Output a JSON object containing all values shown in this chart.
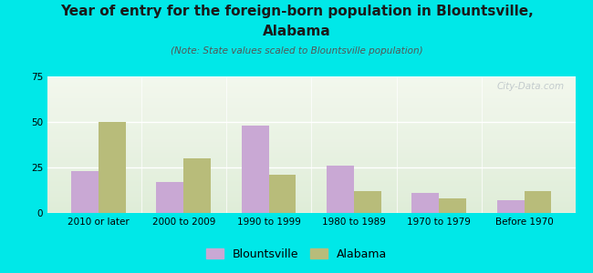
{
  "title_line1": "Year of entry for the foreign-born population in Blountsville,",
  "title_line2": "Alabama",
  "subtitle": "(Note: State values scaled to Blountsville population)",
  "categories": [
    "2010 or later",
    "2000 to 2009",
    "1990 to 1999",
    "1980 to 1989",
    "1970 to 1979",
    "Before 1970"
  ],
  "blountsville_values": [
    23,
    17,
    48,
    26,
    11,
    7
  ],
  "alabama_values": [
    50,
    30,
    21,
    12,
    8,
    12
  ],
  "blountsville_color": "#c9a8d4",
  "alabama_color": "#b8bc7a",
  "background_color": "#00e8e8",
  "plot_bg_color": "#e8f0e0",
  "watermark": "City-Data.com",
  "ylim": [
    0,
    75
  ],
  "yticks": [
    0,
    25,
    50,
    75
  ],
  "bar_width": 0.32,
  "legend_blountsville": "Blountsville",
  "legend_alabama": "Alabama",
  "title_fontsize": 11,
  "subtitle_fontsize": 7.5,
  "tick_fontsize": 7.5,
  "legend_fontsize": 9,
  "title_color": "#1a1a1a",
  "subtitle_color": "#555555"
}
